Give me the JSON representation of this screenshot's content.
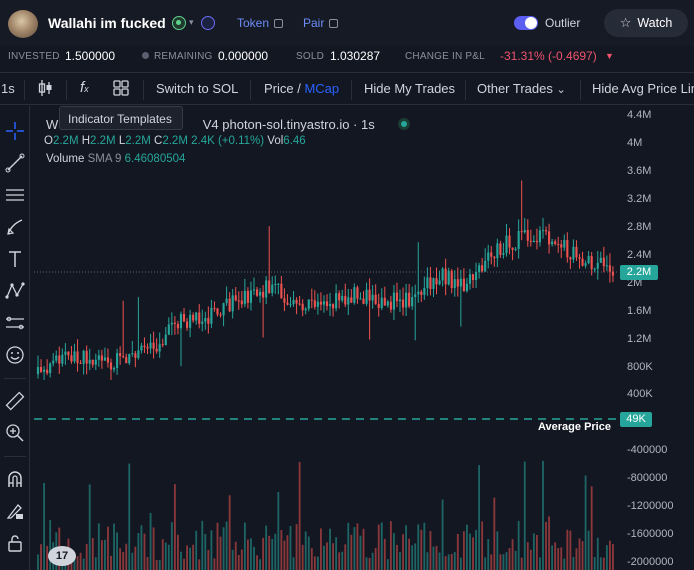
{
  "header": {
    "token_name": "Wallahi im fucked",
    "token_link": "Token",
    "pair_link": "Pair",
    "outlier_label": "Outlier",
    "watch_label": "Watch"
  },
  "stats": {
    "invested_label": "INVESTED",
    "invested_value": "1.500000",
    "remaining_label": "REMAINING",
    "remaining_value": "0.000000",
    "sold_label": "SOLD",
    "sold_value": "1.030287",
    "change_label": "CHANGE IN P&L",
    "change_value": "-31.31% (-0.4697)"
  },
  "toolbar": {
    "interval": "1s",
    "switch_label": "Switch to SOL",
    "price_label": "Price /",
    "mcap_label": "MCap",
    "hide_my_trades": "Hide My Trades",
    "other_trades": "Other Trades",
    "hide_avg": "Hide Avg Price Lin"
  },
  "tooltip": "Indicator Templates",
  "legend": {
    "title": "W                                        V4 photon-sol.tinyastro.io · 1s",
    "o_label": "O",
    "o_value": "2.2M",
    "h_label": "H",
    "h_value": "2.2M",
    "l_label": "L",
    "l_value": "2.2M",
    "c_label": "C",
    "c_value": "2.2M",
    "change": "2.4K (+0.11%)",
    "vol_label": "Vol",
    "vol_value": "6.46",
    "volume_label": "Volume",
    "sma_label": "SMA 9",
    "sma_value": "6.46080504"
  },
  "price_scale": {
    "ticks": [
      "4.4M",
      "4M",
      "3.6M",
      "3.2M",
      "2.8M",
      "2.4M",
      "2M",
      "1.6M",
      "1.2M",
      "800K",
      "400K",
      "-400000",
      "-800000",
      "-1200000",
      "-1600000",
      "-2000000"
    ],
    "current": "2.2M",
    "avg": "49K",
    "avg_label": "Average Price"
  },
  "colors": {
    "up": "#26a69a",
    "down": "#ef5350",
    "bg": "#131722",
    "accent": "#2962ff",
    "loss": "#f0536c"
  },
  "chart_data": {
    "type": "candlestick",
    "interval": "1s",
    "y_unit": "market cap",
    "ylim": [
      -2000000,
      4400000
    ],
    "close_path": [
      [
        0,
        700000
      ],
      [
        0.05,
        1000000
      ],
      [
        0.1,
        950000
      ],
      [
        0.15,
        850000
      ],
      [
        0.2,
        1100000
      ],
      [
        0.25,
        1450000
      ],
      [
        0.3,
        1550000
      ],
      [
        0.35,
        1750000
      ],
      [
        0.4,
        1950000
      ],
      [
        0.45,
        1750000
      ],
      [
        0.5,
        1700000
      ],
      [
        0.55,
        1850000
      ],
      [
        0.6,
        1700000
      ],
      [
        0.65,
        1800000
      ],
      [
        0.7,
        2100000
      ],
      [
        0.75,
        2000000
      ],
      [
        0.8,
        2500000
      ],
      [
        0.85,
        2700000
      ],
      [
        0.9,
        2600000
      ],
      [
        0.95,
        2300000
      ],
      [
        1.0,
        2200000
      ]
    ],
    "current_price": 2200000,
    "average_price": 49000
  }
}
